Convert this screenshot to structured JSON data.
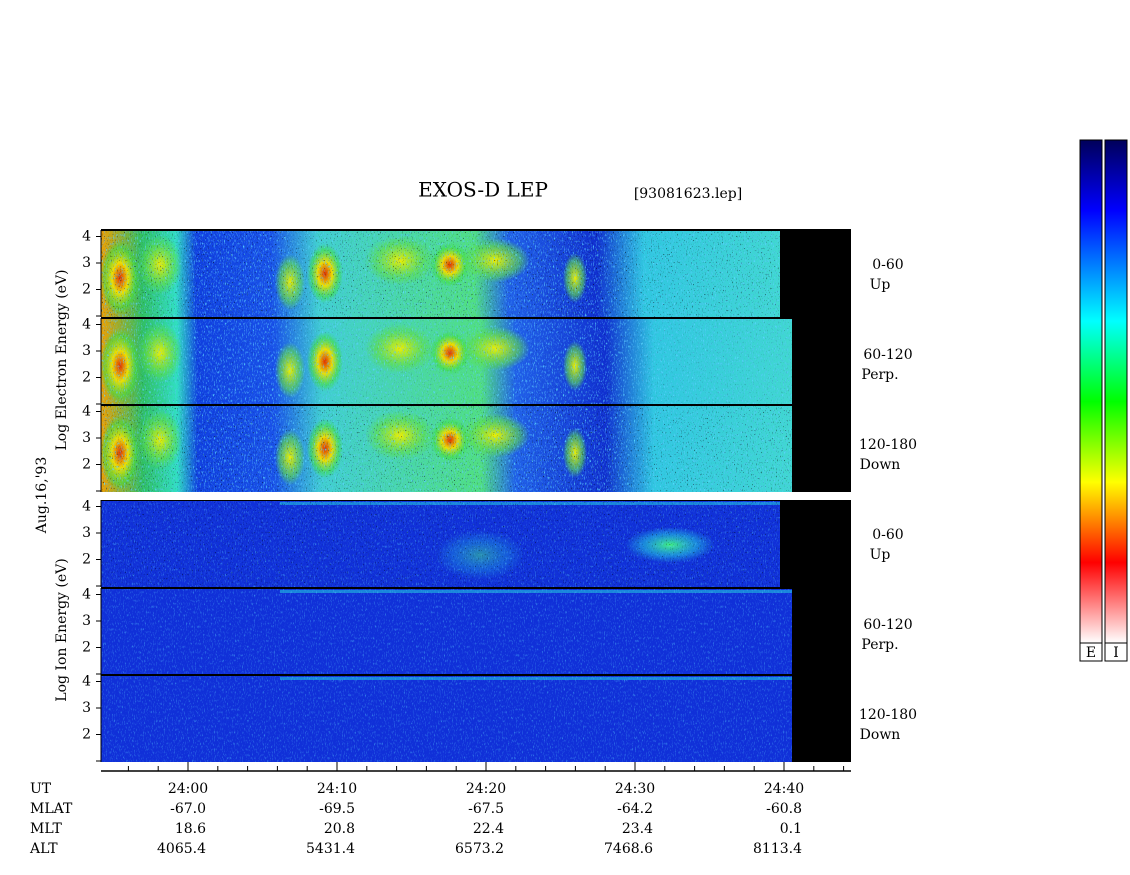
{
  "title": "EXOS-D LEP",
  "file": "[93081623.lep]",
  "date": "Aug.16,'93",
  "electron": {
    "ylabel": "Log  Electron  Energy (eV)",
    "panels": [
      {
        "label": "0-60",
        "sublabel": "Up",
        "yticks": [
          2,
          3,
          4
        ]
      },
      {
        "label": "60-120",
        "sublabel": "Perp.",
        "yticks": [
          2,
          3,
          4
        ]
      },
      {
        "label": "120-180",
        "sublabel": "Down",
        "yticks": [
          2,
          3,
          4
        ]
      }
    ]
  },
  "ion": {
    "ylabel": "Log  Ion  Energy (eV)",
    "panels": [
      {
        "label": "0-60",
        "sublabel": "Up",
        "yticks": [
          2,
          3,
          4
        ]
      },
      {
        "label": "60-120",
        "sublabel": "Perp.",
        "yticks": [
          2,
          3,
          4
        ]
      },
      {
        "label": "120-180",
        "sublabel": "Down",
        "yticks": [
          2,
          3,
          4
        ]
      }
    ]
  },
  "colorbar": [
    "E",
    "I"
  ],
  "ephemeris": [
    {
      "name": "UT",
      "values": [
        "24:00",
        "24:10",
        "24:20",
        "24:30",
        "24:40"
      ]
    },
    {
      "name": "MLAT",
      "values": [
        "-67.0",
        "-69.5",
        "-67.5",
        "-64.2",
        "-60.8"
      ]
    },
    {
      "name": "MLT",
      "values": [
        "18.6",
        "20.8",
        "22.4",
        "23.4",
        "0.1"
      ]
    },
    {
      "name": "ALT",
      "values": [
        "4065.4",
        "5431.4",
        "6573.2",
        "7468.6",
        "8113.4"
      ]
    }
  ]
}
